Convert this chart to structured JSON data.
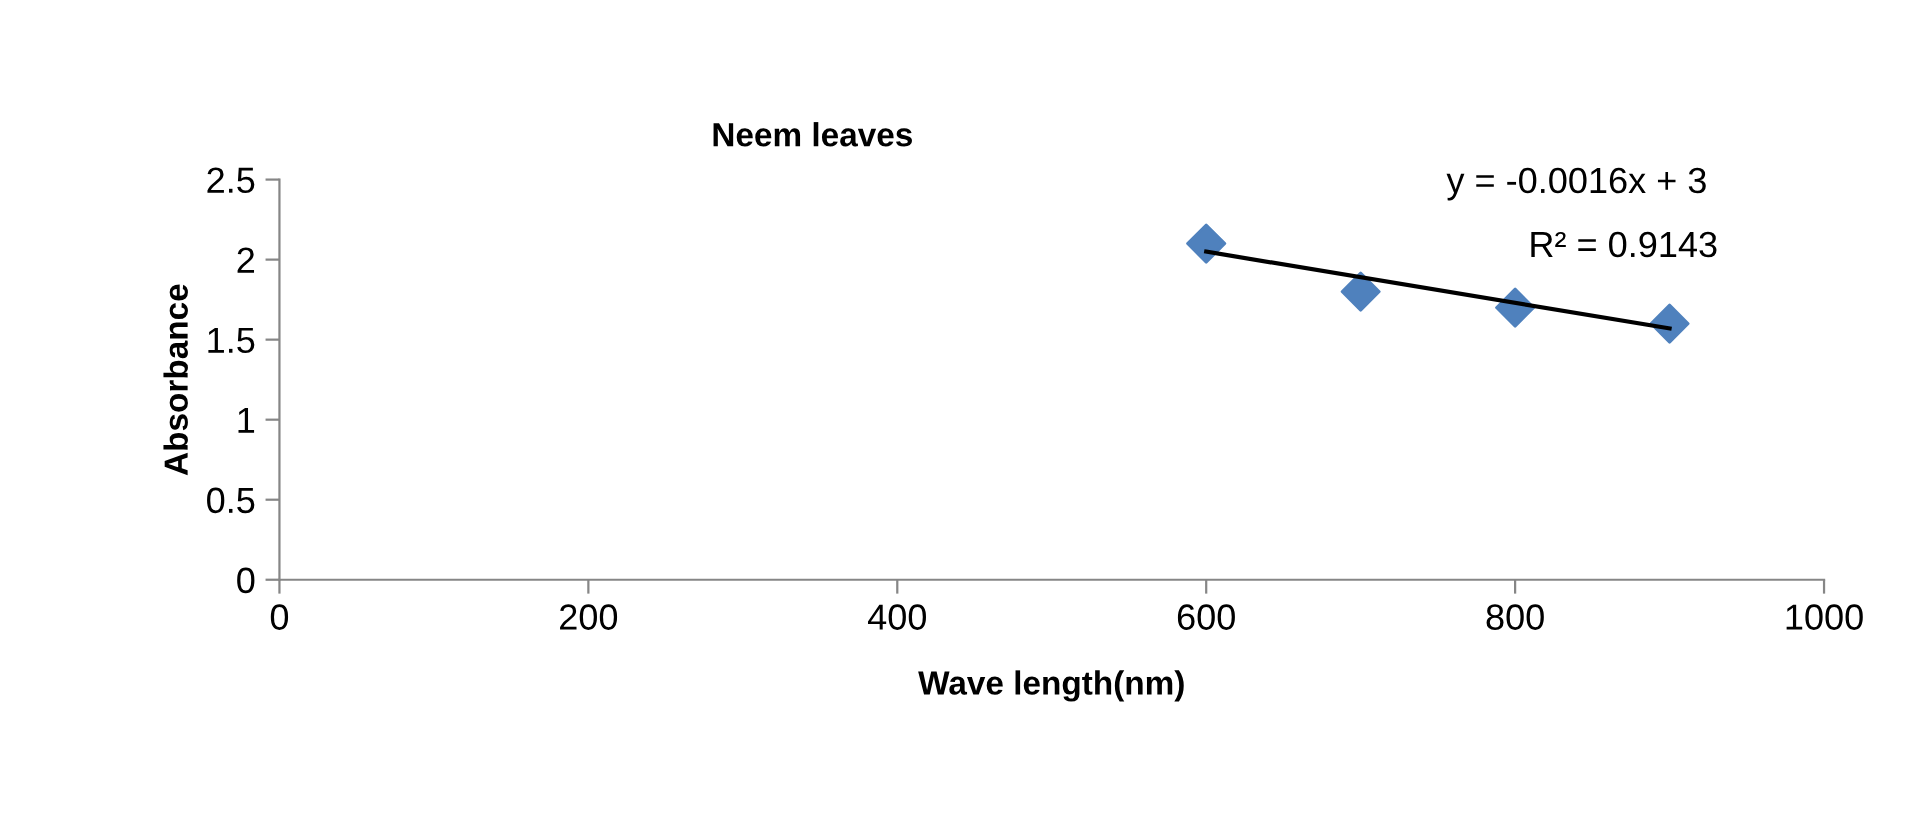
{
  "chart_data": {
    "type": "scatter",
    "title": "Neem leaves",
    "xlabel": "Wave length(nm)",
    "ylabel": "Absorbance",
    "series": [
      {
        "color": "#4f81bd",
        "marker": "diamond",
        "x": [
          600,
          700,
          800,
          900
        ],
        "values": [
          2.1,
          1.8,
          1.7,
          1.6
        ]
      },
      {
        "type": "line",
        "color": "#000000",
        "marker": "none",
        "line_style": "solid",
        "x": [
          600,
          900
        ],
        "values": [
          2.05,
          1.57
        ]
      }
    ],
    "annotations": [
      "y = -0.0016x + 3",
      "R² = 0.9143"
    ],
    "xlim": [
      0,
      1000
    ],
    "xticks": [
      0,
      200,
      400,
      600,
      800,
      1000
    ],
    "ylim": [
      0,
      2.5
    ],
    "yticks": [
      0,
      0.5,
      1,
      1.5,
      2,
      2.5
    ],
    "grid": false,
    "legend": false
  }
}
